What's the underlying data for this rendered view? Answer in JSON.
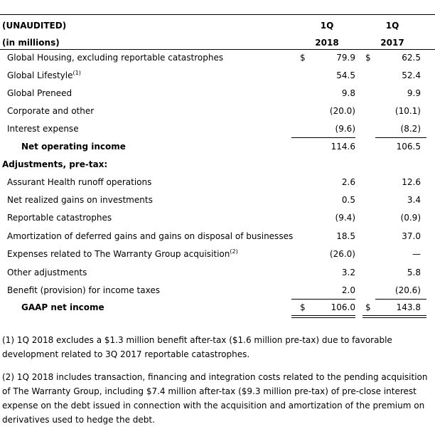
{
  "table": {
    "header": {
      "unaudited": "(UNAUDITED)",
      "units": "(in millions)",
      "col1_period": "1Q",
      "col1_year": "2018",
      "col2_period": "1Q",
      "col2_year": "2017"
    },
    "rows": [
      {
        "label": "Global Housing, excluding reportable catastrophes",
        "c1_sign": "$",
        "c1": "79.9",
        "c2_sign": "$",
        "c2": "62.5"
      },
      {
        "label": "Global Lifestyle",
        "sup": "(1)",
        "c1": "54.5",
        "c2": "52.4"
      },
      {
        "label": "Global Preneed",
        "c1": "9.8",
        "c2": "9.9"
      },
      {
        "label": "Corporate and other",
        "c1": "(20.0)",
        "c2": "(10.1)"
      },
      {
        "label": "Interest expense",
        "c1": "(9.6)",
        "c2": "(8.2)"
      },
      {
        "label": "Net operating income",
        "c1": "114.6",
        "c2": "106.5"
      },
      {
        "label": "Adjustments, pre-tax:"
      },
      {
        "label": "Assurant Health runoff operations",
        "c1": "2.6",
        "c2": "12.6"
      },
      {
        "label": "Net realized gains on investments",
        "c1": "0.5",
        "c2": "3.4"
      },
      {
        "label": "Reportable catastrophes",
        "c1": "(9.4)",
        "c2": "(0.9)"
      },
      {
        "label": "Amortization of deferred gains and gains on disposal of businesses",
        "c1": "18.5",
        "c2": "37.0"
      },
      {
        "label": "Expenses related to The Warranty Group acquisition",
        "sup": "(2)",
        "c1": "(26.0)",
        "c2": "—"
      },
      {
        "label": "Other adjustments",
        "c1": "3.2",
        "c2": "5.8"
      },
      {
        "label": "Benefit (provision) for income taxes",
        "c1": "2.0",
        "c2": "(20.6)"
      },
      {
        "label": "GAAP net income",
        "c1_sign": "$",
        "c1": "106.0",
        "c2_sign": "$",
        "c2": "143.8"
      }
    ]
  },
  "footnotes": [
    "(1) 1Q 2018 excludes a $1.3 million benefit after-tax ($1.6 million pre-tax) due to favorable development related to 3Q 2017 reportable catastrophes.",
    "(2) 1Q 2018 includes transaction, financing and integration costs related to the pending acquisition of The Warranty Group, including $7.4 million after-tax ($9.3 million pre-tax) of pre-close interest expense on the debt issued in connection with the acquisition and amortization of the premium on derivatives used to hedge the debt."
  ]
}
